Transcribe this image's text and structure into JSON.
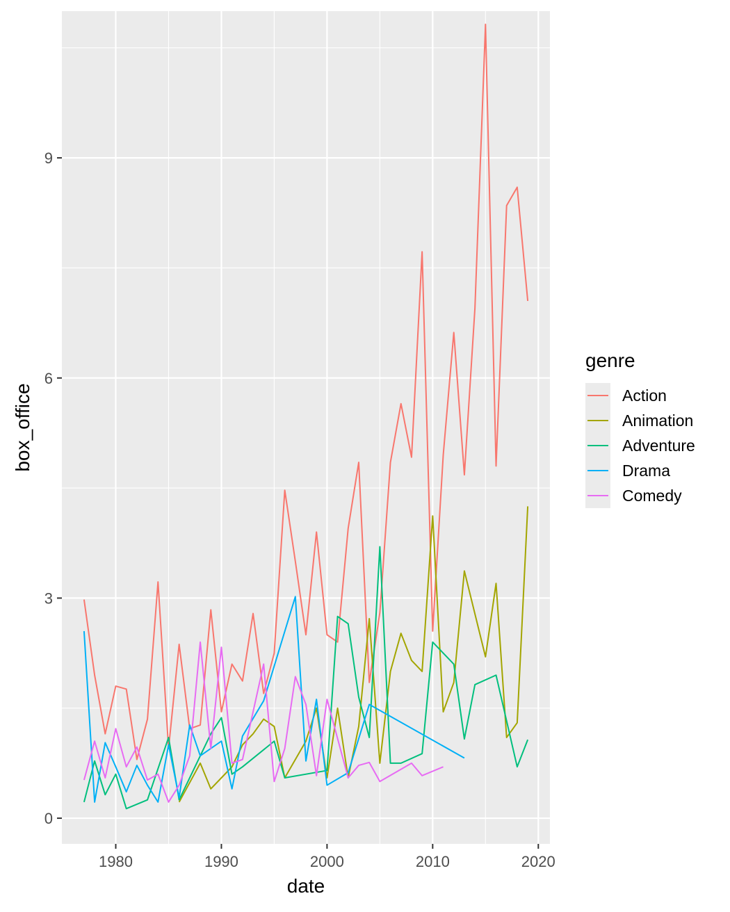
{
  "chart_data": {
    "type": "line",
    "title": "",
    "xlabel": "date",
    "ylabel": "box_office",
    "xlim": [
      1974.9,
      2021.1
    ],
    "ylim": [
      -0.35,
      11.0
    ],
    "x_ticks": [
      1980,
      1990,
      2000,
      2010,
      2020
    ],
    "x_tick_labels": [
      "1980",
      "1990",
      "2000",
      "2010",
      "2020"
    ],
    "y_ticks": [
      0,
      3,
      6,
      9
    ],
    "y_tick_labels": [
      "0",
      "3",
      "6",
      "9"
    ],
    "x_minor": [
      1985,
      1995,
      2005,
      2015
    ],
    "y_minor": [
      1.5,
      4.5,
      7.5,
      10.5
    ],
    "grid": true,
    "panel_background": "#ebebeb",
    "legend": {
      "title": "genre",
      "position": "right"
    },
    "series": [
      {
        "name": "Action",
        "color": "#f8766d",
        "points": [
          [
            1977,
            2.98
          ],
          [
            1978,
            1.95
          ],
          [
            1979,
            1.15
          ],
          [
            1980,
            1.8
          ],
          [
            1981,
            1.76
          ],
          [
            1982,
            0.8
          ],
          [
            1983,
            1.35
          ],
          [
            1984,
            3.22
          ],
          [
            1985,
            0.95
          ],
          [
            1986,
            2.37
          ],
          [
            1987,
            1.22
          ],
          [
            1988,
            1.27
          ],
          [
            1989,
            2.84
          ],
          [
            1990,
            1.45
          ],
          [
            1991,
            2.1
          ],
          [
            1992,
            1.87
          ],
          [
            1993,
            2.79
          ],
          [
            1994,
            1.7
          ],
          [
            1995,
            2.25
          ],
          [
            1996,
            4.47
          ],
          [
            1997,
            3.5
          ],
          [
            1998,
            2.5
          ],
          [
            1999,
            3.9
          ],
          [
            2000,
            2.5
          ],
          [
            2001,
            2.4
          ],
          [
            2002,
            3.95
          ],
          [
            2003,
            4.85
          ],
          [
            2004,
            1.85
          ],
          [
            2005,
            2.8
          ],
          [
            2006,
            4.85
          ],
          [
            2007,
            5.65
          ],
          [
            2008,
            4.92
          ],
          [
            2009,
            7.72
          ],
          [
            2010,
            2.55
          ],
          [
            2011,
            4.95
          ],
          [
            2012,
            6.62
          ],
          [
            2013,
            4.68
          ],
          [
            2014,
            6.95
          ],
          [
            2015,
            10.82
          ],
          [
            2016,
            4.8
          ],
          [
            2017,
            8.35
          ],
          [
            2018,
            8.6
          ],
          [
            2019,
            7.05
          ]
        ]
      },
      {
        "name": "Animation",
        "color": "#a3a500",
        "points": [
          [
            1986,
            0.22
          ],
          [
            1988,
            0.75
          ],
          [
            1989,
            0.4
          ],
          [
            1990,
            0.55
          ],
          [
            1991,
            0.7
          ],
          [
            1992,
            1.0
          ],
          [
            1993,
            1.15
          ],
          [
            1994,
            1.35
          ],
          [
            1995,
            1.25
          ],
          [
            1996,
            0.55
          ],
          [
            1998,
            1.05
          ],
          [
            1999,
            1.5
          ],
          [
            2000,
            0.55
          ],
          [
            2001,
            1.5
          ],
          [
            2002,
            0.55
          ],
          [
            2003,
            1.25
          ],
          [
            2004,
            2.72
          ],
          [
            2005,
            0.75
          ],
          [
            2006,
            2.0
          ],
          [
            2007,
            2.52
          ],
          [
            2008,
            2.15
          ],
          [
            2009,
            2.0
          ],
          [
            2010,
            4.12
          ],
          [
            2011,
            1.45
          ],
          [
            2012,
            1.85
          ],
          [
            2013,
            3.37
          ],
          [
            2015,
            2.2
          ],
          [
            2016,
            3.2
          ],
          [
            2017,
            1.1
          ],
          [
            2018,
            1.3
          ],
          [
            2019,
            4.25
          ]
        ]
      },
      {
        "name": "Adventure",
        "color": "#00bf7d",
        "points": [
          [
            1977,
            0.22
          ],
          [
            1978,
            0.78
          ],
          [
            1979,
            0.32
          ],
          [
            1980,
            0.6
          ],
          [
            1981,
            0.13
          ],
          [
            1983,
            0.25
          ],
          [
            1985,
            1.1
          ],
          [
            1986,
            0.25
          ],
          [
            1989,
            1.15
          ],
          [
            1990,
            1.37
          ],
          [
            1991,
            0.6
          ],
          [
            1992,
            0.7
          ],
          [
            1995,
            1.05
          ],
          [
            1996,
            0.55
          ],
          [
            2000,
            0.65
          ],
          [
            2001,
            2.75
          ],
          [
            2002,
            2.65
          ],
          [
            2003,
            1.65
          ],
          [
            2004,
            1.1
          ],
          [
            2005,
            3.7
          ],
          [
            2006,
            0.75
          ],
          [
            2007,
            0.75
          ],
          [
            2009,
            0.88
          ],
          [
            2010,
            2.4
          ],
          [
            2012,
            2.1
          ],
          [
            2013,
            1.08
          ],
          [
            2014,
            1.82
          ],
          [
            2016,
            1.95
          ],
          [
            2018,
            0.7
          ],
          [
            2019,
            1.07
          ]
        ]
      },
      {
        "name": "Drama",
        "color": "#00b0f6",
        "points": [
          [
            1977,
            2.55
          ],
          [
            1978,
            0.22
          ],
          [
            1979,
            1.03
          ],
          [
            1980,
            0.7
          ],
          [
            1981,
            0.36
          ],
          [
            1982,
            0.72
          ],
          [
            1983,
            0.45
          ],
          [
            1984,
            0.22
          ],
          [
            1985,
            1.0
          ],
          [
            1986,
            0.28
          ],
          [
            1987,
            1.27
          ],
          [
            1988,
            0.85
          ],
          [
            1990,
            1.05
          ],
          [
            1991,
            0.4
          ],
          [
            1992,
            1.12
          ],
          [
            1994,
            1.6
          ],
          [
            1997,
            3.02
          ],
          [
            1998,
            0.78
          ],
          [
            1999,
            1.62
          ],
          [
            2000,
            0.45
          ],
          [
            2002,
            0.62
          ],
          [
            2004,
            1.55
          ],
          [
            2013,
            0.82
          ]
        ]
      },
      {
        "name": "Comedy",
        "color": "#e76bf3",
        "points": [
          [
            1977,
            0.52
          ],
          [
            1978,
            1.05
          ],
          [
            1979,
            0.55
          ],
          [
            1980,
            1.22
          ],
          [
            1981,
            0.7
          ],
          [
            1982,
            0.97
          ],
          [
            1983,
            0.52
          ],
          [
            1984,
            0.6
          ],
          [
            1985,
            0.22
          ],
          [
            1986,
            0.45
          ],
          [
            1987,
            0.85
          ],
          [
            1988,
            2.4
          ],
          [
            1989,
            0.95
          ],
          [
            1990,
            2.33
          ],
          [
            1991,
            0.75
          ],
          [
            1992,
            0.8
          ],
          [
            1993,
            1.45
          ],
          [
            1994,
            2.1
          ],
          [
            1995,
            0.5
          ],
          [
            1996,
            0.95
          ],
          [
            1997,
            1.93
          ],
          [
            1998,
            1.55
          ],
          [
            1999,
            0.58
          ],
          [
            2000,
            1.62
          ],
          [
            2002,
            0.55
          ],
          [
            2003,
            0.72
          ],
          [
            2004,
            0.76
          ],
          [
            2005,
            0.5
          ],
          [
            2008,
            0.75
          ],
          [
            2009,
            0.58
          ],
          [
            2011,
            0.7
          ]
        ]
      }
    ]
  }
}
